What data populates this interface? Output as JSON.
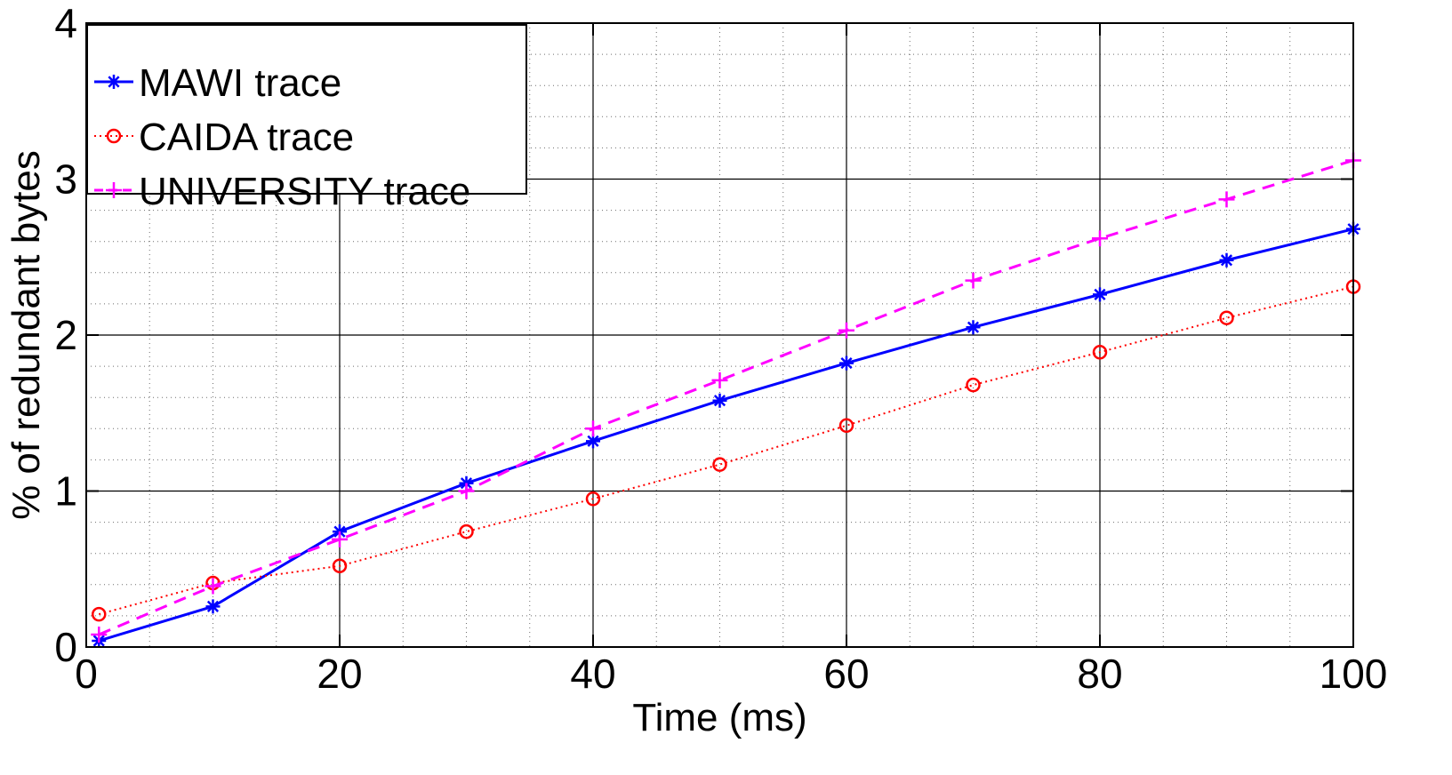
{
  "chart_data": {
    "type": "line",
    "title": "",
    "xlabel": "Time (ms)",
    "ylabel": "% of redundant bytes",
    "xlim": [
      0,
      100
    ],
    "ylim": [
      0,
      4
    ],
    "xticks": [
      0,
      20,
      40,
      60,
      80,
      100
    ],
    "yticks": [
      0,
      1,
      2,
      3,
      4
    ],
    "grid": true,
    "minor_grid": true,
    "legend_position": "top-left",
    "series": [
      {
        "name": "MAWI trace",
        "color": "#0000ff",
        "line_style": "solid",
        "marker": "asterisk",
        "x": [
          1,
          10,
          20,
          30,
          40,
          50,
          60,
          70,
          80,
          90,
          100
        ],
        "y": [
          0.04,
          0.26,
          0.74,
          1.05,
          1.32,
          1.58,
          1.82,
          2.05,
          2.26,
          2.48,
          2.68
        ]
      },
      {
        "name": "CAIDA trace",
        "color": "#ff0000",
        "line_style": "dotted",
        "marker": "circle",
        "x": [
          1,
          10,
          20,
          30,
          40,
          50,
          60,
          70,
          80,
          90,
          100
        ],
        "y": [
          0.21,
          0.41,
          0.52,
          0.74,
          0.95,
          1.17,
          1.42,
          1.68,
          1.89,
          2.11,
          2.31
        ]
      },
      {
        "name": "UNIVERSITY trace",
        "color": "#ff00ff",
        "line_style": "dashed",
        "marker": "plus",
        "x": [
          1,
          10,
          20,
          30,
          40,
          50,
          60,
          70,
          80,
          90,
          100
        ],
        "y": [
          0.08,
          0.39,
          0.69,
          1.0,
          1.4,
          1.71,
          2.03,
          2.35,
          2.62,
          2.87,
          3.12
        ]
      }
    ]
  }
}
